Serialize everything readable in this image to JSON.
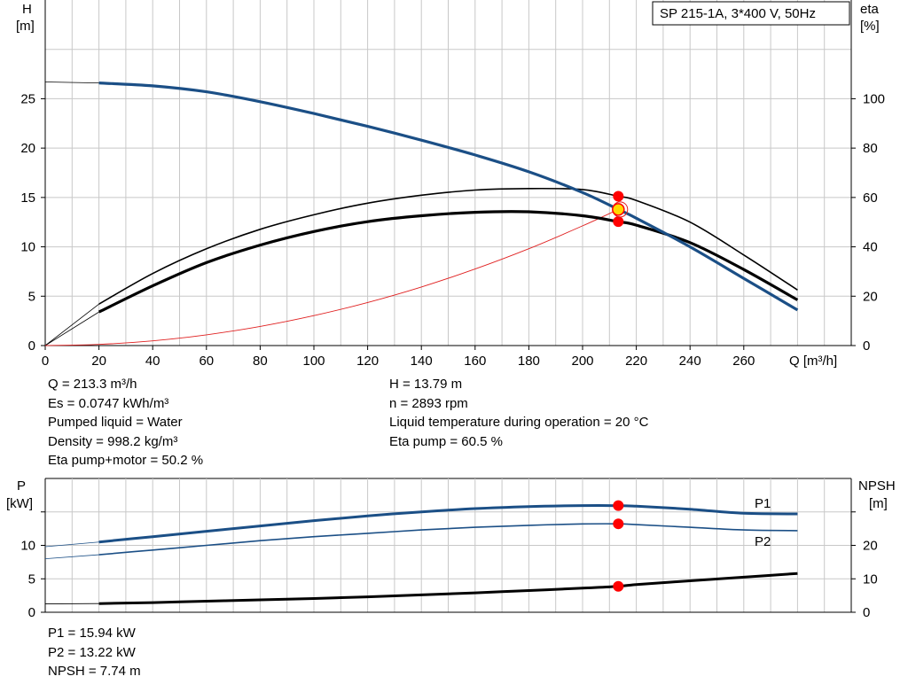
{
  "title_box": "SP 215-1A, 3*400 V, 50Hz",
  "colors": {
    "head_curve": "#1b4f86",
    "eta_curves": "#000000",
    "system_curve": "#e02020",
    "operating_point": "#ff0000",
    "intersection_point": "#ffd800",
    "grid": "#c8c8c8",
    "curve_labels": "#1b4f86"
  },
  "chart_data": [
    {
      "type": "line",
      "x_label": "Q [m³/h]",
      "x_ticks": [
        0,
        20,
        40,
        60,
        80,
        100,
        120,
        140,
        160,
        180,
        200,
        220,
        240,
        260
      ],
      "xlim": [
        0,
        300
      ],
      "y_left_label": [
        "H",
        "[m]"
      ],
      "y_left_ticks": [
        0,
        5,
        10,
        15,
        20,
        25
      ],
      "y_left_lim": [
        0,
        35
      ],
      "y_right_label": [
        "eta",
        "[%]"
      ],
      "y_right_ticks": [
        0,
        20,
        40,
        60,
        80,
        100
      ],
      "y_right_lim": [
        0,
        140
      ],
      "grid": true,
      "series": [
        {
          "name": "H",
          "axis": "left",
          "x": [
            20,
            40,
            60,
            80,
            100,
            120,
            140,
            160,
            180,
            200,
            213.3,
            220,
            240,
            260,
            280
          ],
          "y": [
            26.6,
            26.3,
            25.7,
            24.7,
            23.5,
            22.2,
            20.8,
            19.3,
            17.6,
            15.5,
            13.79,
            12.9,
            10.0,
            6.8,
            3.6
          ]
        },
        {
          "name": "eta pump",
          "axis": "right",
          "x": [
            20,
            40,
            60,
            80,
            100,
            120,
            140,
            160,
            180,
            200,
            213.3,
            220,
            240,
            260,
            280
          ],
          "y": [
            16.8,
            29.2,
            39.2,
            47.1,
            53.0,
            57.7,
            60.9,
            63.0,
            63.6,
            63.2,
            60.5,
            58.8,
            50.0,
            36.7,
            22.5
          ]
        },
        {
          "name": "eta pump+motor",
          "axis": "right",
          "x": [
            20,
            40,
            60,
            80,
            100,
            120,
            140,
            160,
            180,
            200,
            213.3,
            220,
            240,
            260,
            280
          ],
          "y": [
            13.6,
            24.2,
            33.6,
            40.7,
            46.2,
            50.2,
            52.6,
            54.0,
            54.2,
            52.6,
            50.2,
            48.8,
            41.7,
            30.8,
            18.5
          ]
        },
        {
          "name": "system curve",
          "axis": "left",
          "x": [
            20,
            40,
            60,
            80,
            100,
            120,
            140,
            160,
            180,
            200,
            213.3
          ],
          "y": [
            0.12,
            0.48,
            1.09,
            1.94,
            3.03,
            4.36,
            5.93,
            7.75,
            9.81,
            12.12,
            13.79
          ]
        }
      ],
      "operating_point": {
        "Q": 213.3,
        "H": 13.79,
        "eta_pump": 60.5,
        "eta_pump_motor": 50.2
      }
    },
    {
      "type": "line",
      "y_left_label": [
        "P",
        "[kW]"
      ],
      "y_left_ticks": [
        0,
        5,
        10
      ],
      "y_left_lim": [
        0,
        20
      ],
      "y_right_label": [
        "NPSH",
        "[m]"
      ],
      "y_right_ticks": [
        0,
        10,
        20
      ],
      "y_right_lim": [
        0,
        40
      ],
      "xlim": [
        0,
        300
      ],
      "grid": true,
      "series": [
        {
          "name": "P1",
          "axis": "left",
          "x": [
            20,
            40,
            60,
            80,
            100,
            120,
            140,
            160,
            180,
            200,
            213.3,
            220,
            240,
            260,
            280
          ],
          "y": [
            10.5,
            11.3,
            12.1,
            12.9,
            13.7,
            14.4,
            15.0,
            15.5,
            15.8,
            15.95,
            15.94,
            15.85,
            15.4,
            14.8,
            14.7
          ]
        },
        {
          "name": "P2",
          "axis": "left",
          "x": [
            20,
            40,
            60,
            80,
            100,
            120,
            140,
            160,
            180,
            200,
            213.3,
            220,
            240,
            260,
            280
          ],
          "y": [
            8.6,
            9.3,
            10.0,
            10.7,
            11.3,
            11.8,
            12.3,
            12.7,
            13.0,
            13.2,
            13.22,
            13.1,
            12.7,
            12.3,
            12.2
          ]
        },
        {
          "name": "NPSH",
          "axis": "right",
          "x": [
            20,
            40,
            60,
            80,
            100,
            120,
            140,
            160,
            180,
            200,
            213.3,
            220,
            240,
            260,
            280
          ],
          "y": [
            2.6,
            2.9,
            3.3,
            3.7,
            4.1,
            4.6,
            5.2,
            5.8,
            6.5,
            7.2,
            7.74,
            8.3,
            9.4,
            10.5,
            11.6
          ]
        }
      ],
      "operating_point": {
        "P1": 15.94,
        "P2": 13.22,
        "NPSH": 7.74
      }
    }
  ],
  "readout_left": [
    "Q = 213.3 m³/h",
    "Es = 0.0747 kWh/m³",
    "Pumped liquid = Water",
    "Density = 998.2 kg/m³",
    "Eta pump+motor = 50.2 %"
  ],
  "readout_right": [
    "H = 13.79 m",
    "n = 2893 rpm",
    "Liquid temperature during operation = 20 °C",
    "Eta pump = 60.5 %"
  ],
  "readout_bottom": [
    "P1 = 15.94 kW",
    "P2 = 13.22 kW",
    "NPSH = 7.74 m"
  ]
}
